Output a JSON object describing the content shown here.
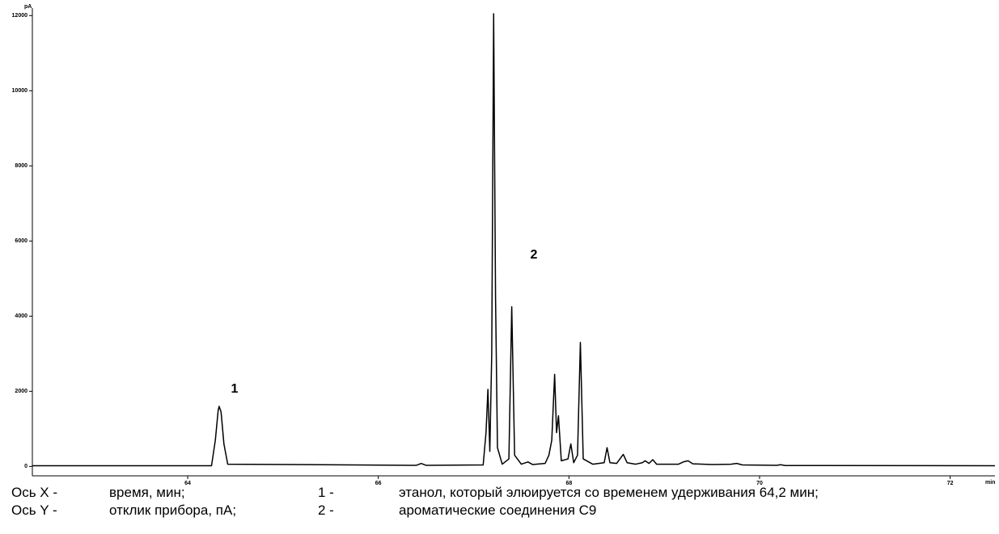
{
  "chart_data": {
    "type": "line",
    "y_unit": "pA",
    "x_unit": "min",
    "x": [
      62.37,
      64.25,
      64.29,
      64.32,
      64.33,
      64.35,
      64.38,
      64.42,
      66.4,
      66.45,
      66.5,
      67.1,
      67.13,
      67.15,
      67.17,
      67.19,
      67.21,
      67.23,
      67.25,
      67.3,
      67.37,
      67.4,
      67.43,
      67.5,
      67.57,
      67.62,
      67.75,
      67.79,
      67.82,
      67.85,
      67.87,
      67.89,
      67.92,
      67.99,
      68.02,
      68.05,
      68.09,
      68.12,
      68.15,
      68.25,
      68.37,
      68.4,
      68.43,
      68.5,
      68.57,
      68.61,
      68.7,
      68.77,
      68.8,
      68.84,
      68.88,
      68.92,
      69.15,
      69.2,
      69.25,
      69.3,
      69.5,
      69.7,
      69.76,
      69.82,
      70.18,
      70.22,
      70.27,
      72.47
    ],
    "values": [
      20,
      20,
      700,
      1500,
      1600,
      1450,
      600,
      60,
      30,
      80,
      30,
      40,
      900,
      2050,
      400,
      3000,
      12050,
      4500,
      500,
      60,
      200,
      4250,
      300,
      60,
      120,
      50,
      80,
      300,
      700,
      2450,
      900,
      1350,
      150,
      200,
      600,
      100,
      300,
      3300,
      200,
      60,
      100,
      500,
      100,
      80,
      320,
      100,
      60,
      100,
      150,
      80,
      180,
      60,
      60,
      120,
      150,
      70,
      50,
      60,
      80,
      40,
      30,
      45,
      25,
      20
    ],
    "color": "#000000",
    "xlim": [
      62.37,
      72.47
    ],
    "xticks": [
      64,
      66,
      68,
      70,
      72
    ],
    "ylim": [
      -250,
      12200
    ],
    "yticks": [
      0,
      2000,
      4000,
      6000,
      8000,
      10000,
      12000
    ],
    "grid": false,
    "annotations": [
      "1",
      "2"
    ]
  },
  "caption": {
    "rows": [
      [
        "Ось X -",
        "время, мин;",
        "1 -",
        "этанол, который элюируется со временем удерживания 64,2 мин;"
      ],
      [
        "Ось Y -",
        "отклик прибора, пА;",
        "2 -",
        "ароматические соединения С9"
      ]
    ]
  }
}
